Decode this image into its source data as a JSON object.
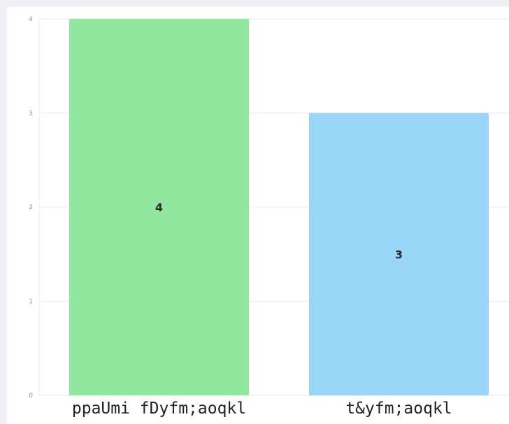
{
  "chart_data": {
    "type": "bar",
    "title": "",
    "xlabel": "",
    "ylabel": "",
    "categories": [
      "ppaUmi fDyfm;aoqkl",
      "t&yfm;aoqkl"
    ],
    "values": [
      4,
      3
    ],
    "colors": [
      "#90e79e",
      "#99d5f6"
    ],
    "ylim": [
      0,
      4
    ],
    "yticks": [
      0,
      1,
      2,
      3,
      4
    ],
    "grid": true,
    "legend": "none",
    "data_labels": true
  }
}
